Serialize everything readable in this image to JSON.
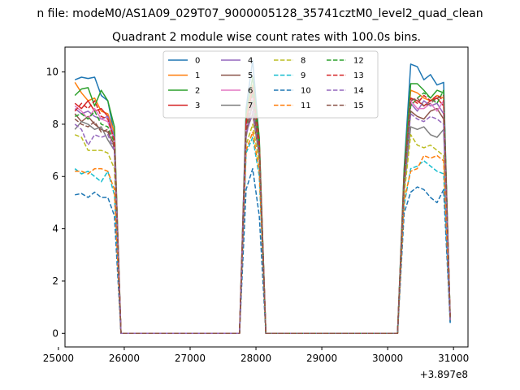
{
  "chart_data": {
    "type": "line",
    "suptitle": "n file: modeM0/AS1A09_029T07_9000005128_35741cztM0_level2_quad_clean",
    "title": "Quadrant 2 module wise count rates with 100.0s bins.",
    "xlabel": "",
    "ylabel": "",
    "x_offset_label": "+3.897e8",
    "xlim": [
      25100,
      31220
    ],
    "ylim": [
      -0.52,
      10.95
    ],
    "xticks": [
      25000,
      26000,
      27000,
      28000,
      29000,
      30000,
      31000
    ],
    "xtick_labels": [
      "25000",
      "26000",
      "27000",
      "28000",
      "29000",
      "30000",
      "31000"
    ],
    "yticks": [
      0,
      2,
      4,
      6,
      8,
      10
    ],
    "ytick_labels": [
      "0",
      "2",
      "4",
      "6",
      "8",
      "10"
    ],
    "legend_position": "top-center",
    "x": [
      25250,
      25350,
      25450,
      25550,
      25650,
      25750,
      25850,
      25950,
      26050,
      27750,
      27850,
      27950,
      28050,
      28150,
      30150,
      30250,
      30350,
      30450,
      30550,
      30650,
      30750,
      30850,
      30950
    ],
    "series": [
      {
        "name": "0",
        "color": "#1f77b4",
        "dashed": false,
        "values": [
          9.7,
          9.8,
          9.75,
          9.8,
          9.1,
          8.9,
          7.6,
          0,
          0,
          0,
          8.6,
          10.45,
          7.4,
          0,
          0,
          6.3,
          10.3,
          10.2,
          9.7,
          9.9,
          9.5,
          9.6,
          0.4
        ]
      },
      {
        "name": "1",
        "color": "#ff7f0e",
        "dashed": false,
        "values": [
          9.6,
          9.2,
          8.9,
          9.0,
          8.5,
          8.4,
          7.7,
          0,
          0,
          0,
          8.2,
          9.5,
          7.3,
          0,
          0,
          6.1,
          9.3,
          9.2,
          9.0,
          8.9,
          9.1,
          9.0,
          0.5
        ]
      },
      {
        "name": "2",
        "color": "#2ca02c",
        "dashed": false,
        "values": [
          9.1,
          9.35,
          9.4,
          8.7,
          9.3,
          8.9,
          7.9,
          0,
          0,
          0,
          8.4,
          9.8,
          7.5,
          0,
          0,
          6.2,
          9.55,
          9.55,
          9.3,
          9.0,
          9.3,
          9.2,
          0.6
        ]
      },
      {
        "name": "3",
        "color": "#d62728",
        "dashed": false,
        "values": [
          8.8,
          8.6,
          8.9,
          8.5,
          8.6,
          8.3,
          7.3,
          0,
          0,
          0,
          8.1,
          9.3,
          7.2,
          0,
          0,
          5.9,
          9.0,
          8.9,
          8.7,
          8.9,
          9.0,
          8.7,
          0.5
        ]
      },
      {
        "name": "4",
        "color": "#9467bd",
        "dashed": false,
        "values": [
          8.6,
          8.4,
          8.5,
          8.3,
          8.2,
          8.3,
          7.5,
          0,
          0,
          0,
          7.9,
          8.7,
          7.0,
          0,
          0,
          5.8,
          8.8,
          8.5,
          8.9,
          8.7,
          8.8,
          8.4,
          0.5
        ]
      },
      {
        "name": "5",
        "color": "#8c564b",
        "dashed": false,
        "values": [
          8.4,
          8.1,
          8.3,
          8.0,
          7.8,
          7.7,
          7.2,
          0,
          0,
          0,
          7.7,
          8.4,
          6.8,
          0,
          0,
          5.6,
          8.5,
          8.3,
          8.2,
          8.5,
          8.6,
          8.2,
          0.5
        ]
      },
      {
        "name": "6",
        "color": "#e377c2",
        "dashed": false,
        "values": [
          8.7,
          8.5,
          8.2,
          8.6,
          8.2,
          8.1,
          7.4,
          0,
          0,
          0,
          7.8,
          9.0,
          7.1,
          0,
          0,
          5.7,
          8.9,
          8.6,
          8.6,
          8.8,
          8.5,
          8.9,
          0.6
        ]
      },
      {
        "name": "7",
        "color": "#7f7f7f",
        "dashed": false,
        "values": [
          7.8,
          8.1,
          8.0,
          7.8,
          7.9,
          7.4,
          7.0,
          0,
          0,
          0,
          7.5,
          8.9,
          6.9,
          0,
          0,
          5.5,
          7.9,
          7.8,
          7.9,
          7.6,
          7.5,
          7.8,
          0.5
        ]
      },
      {
        "name": "8",
        "color": "#bcbd22",
        "dashed": true,
        "values": [
          7.6,
          7.5,
          7.0,
          7.0,
          7.0,
          6.9,
          6.3,
          0,
          0,
          0,
          7.2,
          8.0,
          6.5,
          0,
          0,
          5.3,
          7.6,
          7.2,
          7.1,
          7.2,
          7.0,
          6.8,
          0.5
        ]
      },
      {
        "name": "9",
        "color": "#17becf",
        "dashed": true,
        "values": [
          6.3,
          6.1,
          6.2,
          6.0,
          5.8,
          6.2,
          5.3,
          0,
          0,
          0,
          6.9,
          7.5,
          6.0,
          0,
          0,
          4.9,
          6.3,
          6.4,
          6.6,
          6.4,
          6.2,
          6.1,
          0.4
        ]
      },
      {
        "name": "10",
        "color": "#1f77b4",
        "dashed": true,
        "values": [
          5.3,
          5.35,
          5.2,
          5.4,
          5.2,
          5.2,
          4.5,
          0,
          0,
          0,
          5.5,
          6.3,
          4.5,
          0,
          0,
          4.6,
          5.4,
          5.6,
          5.5,
          5.2,
          5.0,
          5.5,
          0.4
        ]
      },
      {
        "name": "11",
        "color": "#ff7f0e",
        "dashed": true,
        "values": [
          6.2,
          6.2,
          6.1,
          6.3,
          6.3,
          6.2,
          5.5,
          0,
          0,
          0,
          7.0,
          7.7,
          6.2,
          0,
          0,
          5.1,
          6.2,
          6.3,
          6.8,
          6.7,
          6.8,
          6.6,
          0.5
        ]
      },
      {
        "name": "12",
        "color": "#2ca02c",
        "dashed": true,
        "values": [
          8.3,
          8.4,
          8.2,
          8.5,
          8.0,
          7.9,
          7.3,
          0,
          0,
          0,
          7.9,
          9.2,
          7.2,
          0,
          0,
          5.9,
          8.7,
          9.0,
          9.2,
          9.0,
          8.8,
          9.3,
          0.6
        ]
      },
      {
        "name": "13",
        "color": "#d62728",
        "dashed": true,
        "values": [
          8.5,
          8.8,
          8.6,
          8.9,
          8.3,
          8.2,
          7.4,
          0,
          0,
          0,
          8.0,
          9.4,
          7.3,
          0,
          0,
          6.0,
          9.0,
          8.8,
          9.1,
          8.9,
          9.1,
          8.9,
          0.6
        ]
      },
      {
        "name": "14",
        "color": "#9467bd",
        "dashed": true,
        "values": [
          8.0,
          7.8,
          7.2,
          7.6,
          7.5,
          7.6,
          7.0,
          0,
          0,
          0,
          7.6,
          8.5,
          6.9,
          0,
          0,
          5.7,
          8.4,
          8.2,
          8.1,
          8.3,
          8.2,
          8.0,
          0.5
        ]
      },
      {
        "name": "15",
        "color": "#8c564b",
        "dashed": true,
        "values": [
          8.2,
          8.0,
          7.9,
          8.1,
          7.7,
          7.8,
          7.1,
          0,
          0,
          0,
          7.7,
          8.8,
          7.0,
          0,
          0,
          5.8,
          8.9,
          9.0,
          8.7,
          8.8,
          9.0,
          9.1,
          0.6
        ]
      }
    ]
  }
}
